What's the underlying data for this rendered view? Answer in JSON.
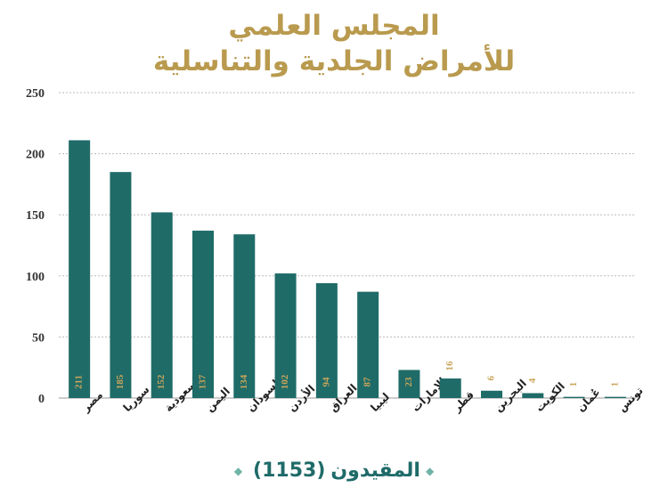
{
  "header": {
    "title_line1": "المجلس العلمي",
    "title_line2": "للأمراض الجلدية والتناسلية"
  },
  "footer": {
    "label": "المقيدون",
    "count": "(1153)",
    "diamond_icon": "diamond-icon"
  },
  "colors": {
    "bar": "#1f6b68",
    "label_inside": "#c9a55a",
    "label_above": "#c9a55a",
    "title": "#b99a4e",
    "grid": "#bbbbbb"
  },
  "chart_data": {
    "type": "bar",
    "categories": [
      "مصر",
      "سوريا",
      "السعودية",
      "اليمن",
      "السودان",
      "الأردن",
      "العراق",
      "ليبيا",
      "الإمارات",
      "قطر",
      "البحرين",
      "الكويت",
      "عُمان",
      "تونس"
    ],
    "values": [
      211,
      185,
      152,
      137,
      134,
      102,
      94,
      87,
      23,
      16,
      6,
      4,
      1,
      1
    ],
    "ylim": [
      0,
      250
    ],
    "yticks": [
      0,
      50,
      100,
      150,
      200,
      250
    ],
    "grid": true,
    "xlabel": "",
    "ylabel": ""
  }
}
